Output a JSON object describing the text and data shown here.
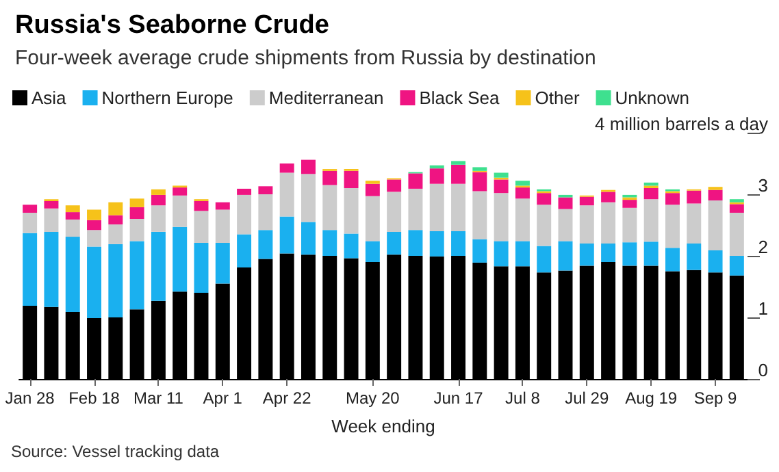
{
  "chart_data": {
    "type": "bar",
    "stacked": true,
    "title": "Russia's Seaborne Crude",
    "subtitle": "Four-week average crude shipments from Russia by destination",
    "xlabel": "Week ending",
    "annotations": [
      "Source: Vessel tracking data"
    ],
    "categories": [
      "Jan 28",
      null,
      null,
      "Feb 18",
      null,
      null,
      "Mar 11",
      null,
      null,
      "Apr 1",
      null,
      null,
      "Apr 22",
      null,
      null,
      null,
      "May 20",
      null,
      null,
      null,
      "Jun 17",
      null,
      null,
      "Jul 8",
      null,
      null,
      "Jul 29",
      null,
      null,
      "Aug 19",
      null,
      null,
      "Sep 9",
      null
    ],
    "ylim": [
      0,
      4
    ],
    "yticks": [
      0,
      1,
      2,
      3,
      {
        "value": 4,
        "label": "4 million barrels a day"
      }
    ],
    "grid": false,
    "legend": "top left",
    "series": [
      {
        "name": "Asia",
        "color": "#000000",
        "values": [
          1.19,
          1.17,
          1.09,
          0.99,
          1.0,
          1.13,
          1.27,
          1.42,
          1.4,
          1.55,
          1.81,
          1.95,
          2.04,
          2.02,
          2.0,
          1.96,
          1.9,
          2.02,
          2.0,
          1.99,
          2.0,
          1.89,
          1.83,
          1.83,
          1.73,
          1.76,
          1.84,
          1.9,
          1.84,
          1.84,
          1.75,
          1.77,
          1.73,
          1.68
        ]
      },
      {
        "name": "Northern Europe",
        "color": "#1ab0ef",
        "values": [
          1.18,
          1.22,
          1.22,
          1.16,
          1.19,
          1.11,
          1.12,
          1.05,
          0.81,
          0.66,
          0.54,
          0.47,
          0.6,
          0.53,
          0.42,
          0.4,
          0.34,
          0.37,
          0.42,
          0.41,
          0.4,
          0.38,
          0.41,
          0.41,
          0.43,
          0.48,
          0.36,
          0.3,
          0.38,
          0.39,
          0.38,
          0.43,
          0.36,
          0.32
        ]
      },
      {
        "name": "Mediterranean",
        "color": "#cccccc",
        "values": [
          0.33,
          0.38,
          0.28,
          0.27,
          0.32,
          0.36,
          0.43,
          0.51,
          0.52,
          0.54,
          0.64,
          0.58,
          0.71,
          0.78,
          0.73,
          0.74,
          0.73,
          0.65,
          0.67,
          0.77,
          0.77,
          0.78,
          0.78,
          0.69,
          0.67,
          0.52,
          0.62,
          0.67,
          0.56,
          0.69,
          0.7,
          0.65,
          0.81,
          0.7
        ]
      },
      {
        "name": "Black Sea",
        "color": "#ef1482",
        "values": [
          0.13,
          0.12,
          0.12,
          0.16,
          0.15,
          0.19,
          0.17,
          0.13,
          0.16,
          0.12,
          0.1,
          0.13,
          0.15,
          0.23,
          0.23,
          0.28,
          0.2,
          0.2,
          0.25,
          0.25,
          0.31,
          0.31,
          0.22,
          0.18,
          0.19,
          0.19,
          0.14,
          0.17,
          0.13,
          0.18,
          0.19,
          0.21,
          0.17,
          0.14
        ]
      },
      {
        "name": "Other",
        "color": "#f6c21a",
        "values": [
          0,
          0.03,
          0.11,
          0.17,
          0.21,
          0.14,
          0.09,
          0.03,
          0.03,
          0,
          0,
          0,
          0,
          0,
          0.03,
          0.03,
          0.05,
          0.02,
          0,
          0,
          0,
          0.02,
          0.03,
          0.03,
          0.03,
          0,
          0.02,
          0.03,
          0.04,
          0.04,
          0.03,
          0.02,
          0.05,
          0.03
        ]
      },
      {
        "name": "Unknown",
        "color": "#3ee08f",
        "values": [
          0,
          0,
          0,
          0,
          0,
          0,
          0,
          0,
          0,
          0,
          0,
          0,
          0,
          0,
          0,
          0,
          0,
          0,
          0.02,
          0.05,
          0.06,
          0.06,
          0.08,
          0.08,
          0.03,
          0.04,
          0,
          0,
          0.04,
          0.05,
          0.03,
          0,
          0,
          0.05
        ]
      }
    ]
  }
}
